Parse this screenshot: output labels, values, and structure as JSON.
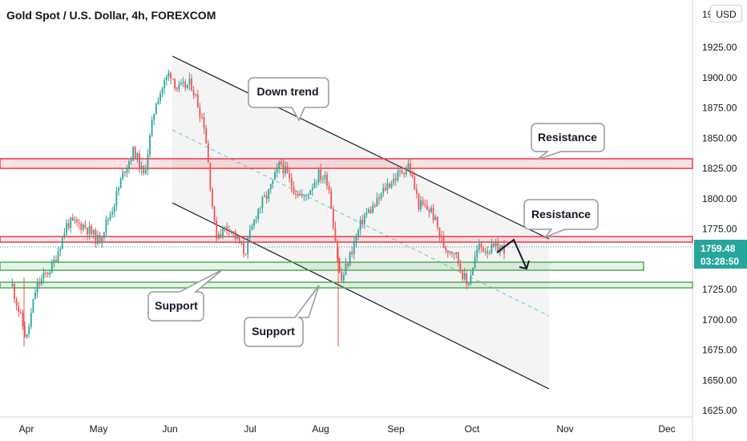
{
  "header": {
    "title": "Gold Spot / U.S. Dollar, 4h, FOREXCOM"
  },
  "toolbar": {
    "currency_label": "USD"
  },
  "price_tag": {
    "price": "1759.48",
    "countdown": "03:28:50"
  },
  "annotations": [
    {
      "label": "Down trend"
    },
    {
      "label": "Resistance"
    },
    {
      "label": "Resistance"
    },
    {
      "label": "Support"
    },
    {
      "label": "Support"
    }
  ],
  "colors": {
    "up_candle": "#26a69a",
    "down_candle": "#ef5350",
    "resistance": "#f23645",
    "support": "#4caf50",
    "price_tag": "#26a69a",
    "channel_midline": "#5ec8c8"
  },
  "chart_data": {
    "type": "candlestick",
    "title": "Gold Spot / U.S. Dollar, 4h, FOREXCOM",
    "x_tick_labels": [
      "Apr",
      "May",
      "Jun",
      "Jul",
      "Aug",
      "Sep",
      "Oct",
      "Nov",
      "Dec"
    ],
    "y_tick_labels": [
      "1925.00",
      "1900.00",
      "1875.00",
      "1850.00",
      "1825.00",
      "1800.00",
      "1775.00",
      "1750.00",
      "1725.00",
      "1700.00",
      "1675.00",
      "1650.00",
      "1625.00"
    ],
    "y_range": [
      1620,
      1950
    ],
    "last_price": 1759.48,
    "grid": false,
    "price_path": [
      {
        "x": "Mar 25",
        "y": 1728
      },
      {
        "x": "Mar 31",
        "y": 1683
      },
      {
        "x": "Apr 5",
        "y": 1727
      },
      {
        "x": "Apr 12",
        "y": 1745
      },
      {
        "x": "Apr 18",
        "y": 1780
      },
      {
        "x": "Apr 25",
        "y": 1778
      },
      {
        "x": "May 1",
        "y": 1765
      },
      {
        "x": "May 7",
        "y": 1793
      },
      {
        "x": "May 12",
        "y": 1825
      },
      {
        "x": "May 16",
        "y": 1840
      },
      {
        "x": "May 20",
        "y": 1818
      },
      {
        "x": "May 25",
        "y": 1880
      },
      {
        "x": "May 31",
        "y": 1905
      },
      {
        "x": "Jun 4",
        "y": 1890
      },
      {
        "x": "Jun 9",
        "y": 1895
      },
      {
        "x": "Jun 14",
        "y": 1860
      },
      {
        "x": "Jun 18",
        "y": 1770
      },
      {
        "x": "Jun 23",
        "y": 1778
      },
      {
        "x": "Jun 29",
        "y": 1755
      },
      {
        "x": "Jul 4",
        "y": 1790
      },
      {
        "x": "Jul 9",
        "y": 1805
      },
      {
        "x": "Jul 14",
        "y": 1830
      },
      {
        "x": "Jul 19",
        "y": 1810
      },
      {
        "x": "Jul 24",
        "y": 1800
      },
      {
        "x": "Jul 30",
        "y": 1820
      },
      {
        "x": "Aug 4",
        "y": 1815
      },
      {
        "x": "Aug 9",
        "y": 1730
      },
      {
        "x": "Aug 13",
        "y": 1755
      },
      {
        "x": "Aug 18",
        "y": 1785
      },
      {
        "x": "Aug 23",
        "y": 1795
      },
      {
        "x": "Aug 27",
        "y": 1810
      },
      {
        "x": "Sep 1",
        "y": 1818
      },
      {
        "x": "Sep 6",
        "y": 1828
      },
      {
        "x": "Sep 10",
        "y": 1795
      },
      {
        "x": "Sep 15",
        "y": 1790
      },
      {
        "x": "Sep 20",
        "y": 1760
      },
      {
        "x": "Sep 24",
        "y": 1757
      },
      {
        "x": "Sep 29",
        "y": 1728
      },
      {
        "x": "Oct 3",
        "y": 1760
      },
      {
        "x": "Oct 7",
        "y": 1758
      },
      {
        "x": "Oct 12",
        "y": 1759.48
      }
    ],
    "channel": {
      "upper": [
        {
          "x": "Jun 1",
          "y": 1915
        },
        {
          "x": "Oct 31",
          "y": 1767
        }
      ],
      "lower": [
        {
          "x": "Jun 1",
          "y": 1811
        },
        {
          "x": "Oct 31",
          "y": 1645
        }
      ]
    },
    "resistance_zones": [
      [
        1823,
        1832
      ],
      [
        1765,
        1770
      ]
    ],
    "support_zones": [
      [
        1737,
        1744
      ],
      [
        1725,
        1730
      ]
    ]
  }
}
